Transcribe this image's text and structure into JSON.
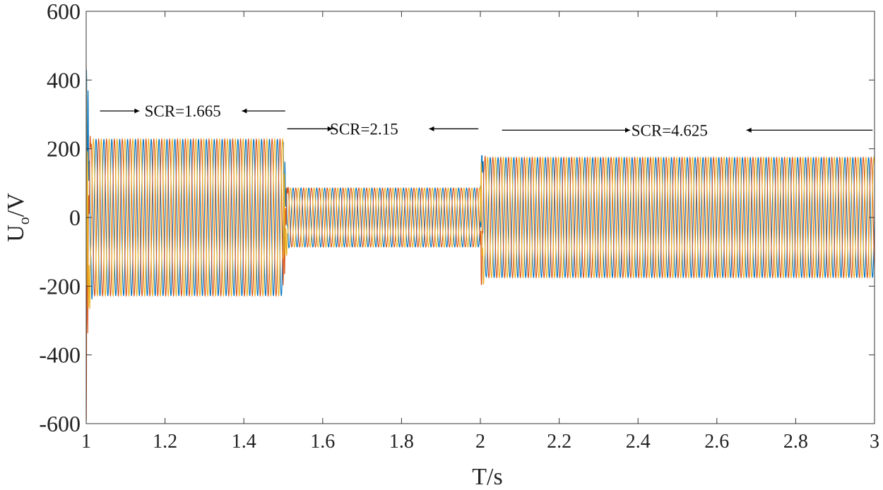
{
  "chart_data": {
    "type": "line",
    "title": "",
    "xlabel": "T/s",
    "ylabel_main": "U",
    "ylabel_sub": "o",
    "ylabel_unit": "/V",
    "xlim": [
      1,
      3
    ],
    "ylim": [
      -600,
      600
    ],
    "xticks": [
      1,
      1.2,
      1.4,
      1.6,
      1.8,
      2,
      2.2,
      2.4,
      2.6,
      2.8,
      3
    ],
    "xtick_labels": [
      "1",
      "1.2",
      "1.4",
      "1.6",
      "1.8",
      "2",
      "2.2",
      "2.4",
      "2.6",
      "2.8",
      "3"
    ],
    "yticks": [
      -600,
      -400,
      -200,
      0,
      200,
      400,
      600
    ],
    "ytick_labels": [
      "-600",
      "-400",
      "-200",
      "0",
      "200",
      "400",
      "600"
    ],
    "grid": false,
    "frequency_hz": 50,
    "series": [
      {
        "color": "#0072BD",
        "phase_deg": 0
      },
      {
        "color": "#D95319",
        "phase_deg": -120
      },
      {
        "color": "#EDB120",
        "phase_deg": 120
      }
    ],
    "segments": [
      {
        "t_start": 1.0,
        "t_end": 1.5,
        "amplitude": 228,
        "scr_label": "SCR=1.665"
      },
      {
        "t_start": 1.5,
        "t_end": 2.0,
        "amplitude": 86,
        "scr_label": "SCR=2.15"
      },
      {
        "t_start": 2.0,
        "t_end": 3.0,
        "amplitude": 175,
        "scr_label": "SCR=4.625"
      }
    ],
    "transients": [
      {
        "t": 1.0,
        "peak_max": 460,
        "peak_min": -590
      },
      {
        "t": 1.5,
        "peak_max": 250,
        "peak_min": -265
      },
      {
        "t": 2.0,
        "peak_max": 180,
        "peak_min": -195
      }
    ],
    "annotations": [
      {
        "text": "SCR=1.665",
        "x": 1.245,
        "y": 310,
        "arrow_left_from": 1.035,
        "arrow_left_to": 1.135,
        "arrow_right_from": 1.505,
        "arrow_right_to": 1.395
      },
      {
        "text": "SCR=2.15",
        "x": 1.705,
        "y": 258,
        "arrow_left_from": 1.51,
        "arrow_left_to": 1.625,
        "arrow_right_from": 1.995,
        "arrow_right_to": 1.87
      },
      {
        "text": "SCR=4.625",
        "x": 2.48,
        "y": 254,
        "arrow_left_from": 2.055,
        "arrow_left_to": 2.38,
        "arrow_right_from": 2.995,
        "arrow_right_to": 2.675
      }
    ]
  }
}
